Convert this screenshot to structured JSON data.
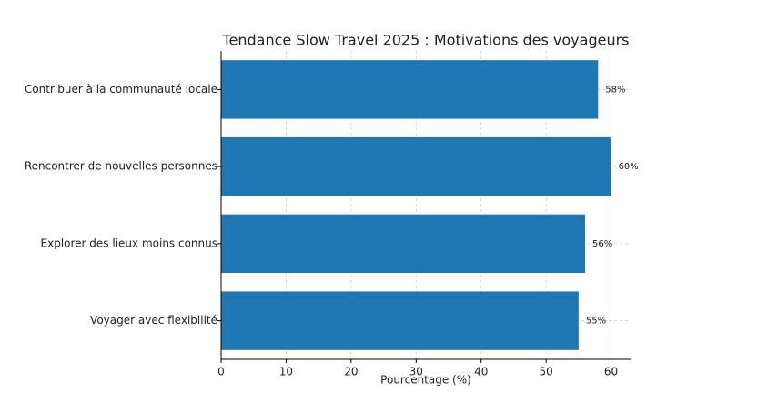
{
  "chart_data": {
    "type": "barh",
    "title": "Tendance Slow Travel 2025 : Motivations des voyageurs",
    "categories": [
      "Contribuer à la communauté locale",
      "Rencontrer de nouvelles personnes",
      "Explorer des lieux moins connus",
      "Voyager avec flexibilité"
    ],
    "values": [
      58,
      60,
      56,
      55
    ],
    "value_labels": [
      "58%",
      "60%",
      "56%",
      "55%"
    ],
    "color": "#1f77b4",
    "xlabel": "Pourcentage (%)",
    "xlim": [
      0,
      63
    ],
    "xticks": [
      0,
      10,
      20,
      30,
      40,
      50,
      60
    ],
    "grid": true
  }
}
